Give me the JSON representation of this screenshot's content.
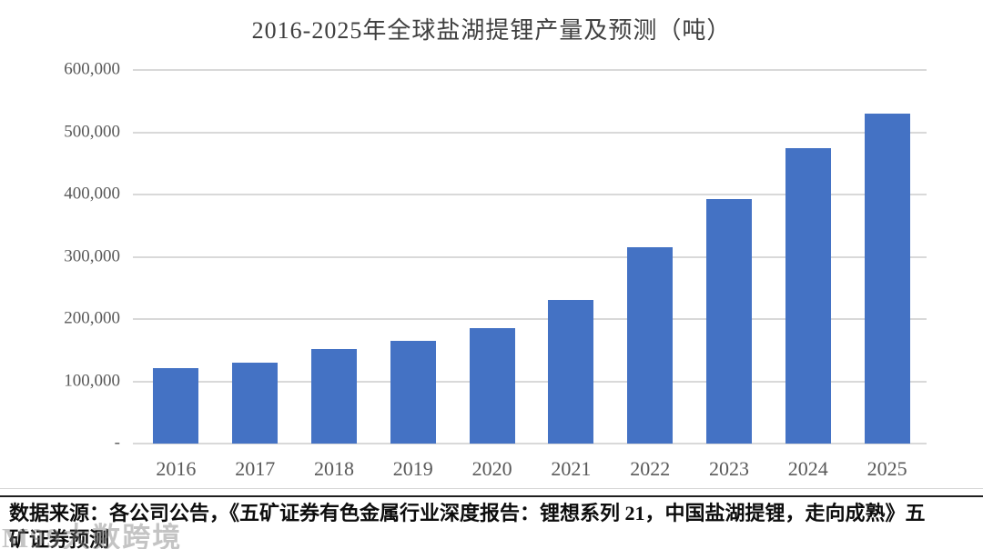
{
  "chart_data": {
    "type": "bar",
    "title": "2016-2025年全球盐湖提锂产量及预测（吨）",
    "categories": [
      "2016",
      "2017",
      "2018",
      "2019",
      "2020",
      "2021",
      "2022",
      "2023",
      "2024",
      "2025"
    ],
    "values": [
      121000,
      130000,
      152000,
      165000,
      186000,
      230000,
      315000,
      392000,
      475000,
      530000
    ],
    "xlabel": "",
    "ylabel": "",
    "ylim": [
      0,
      600000
    ],
    "y_ticks": [
      0,
      100000,
      200000,
      300000,
      400000,
      500000,
      600000
    ],
    "y_tick_labels": [
      "-",
      "100,000",
      "200,000",
      "300,000",
      "400,000",
      "500,000",
      "600,000"
    ],
    "grid": true,
    "legend": false,
    "bar_color": "#4472C4",
    "gridline_color": "#D9D9D9"
  },
  "source": {
    "line1": "数据来源：各公司公告，《五矿证券有色金属行业深度报告：锂想系列 21，中国盐湖提锂，走向成熟》五",
    "line2": "矿证券预测"
  },
  "watermark": {
    "text": "M99大数跨境"
  }
}
